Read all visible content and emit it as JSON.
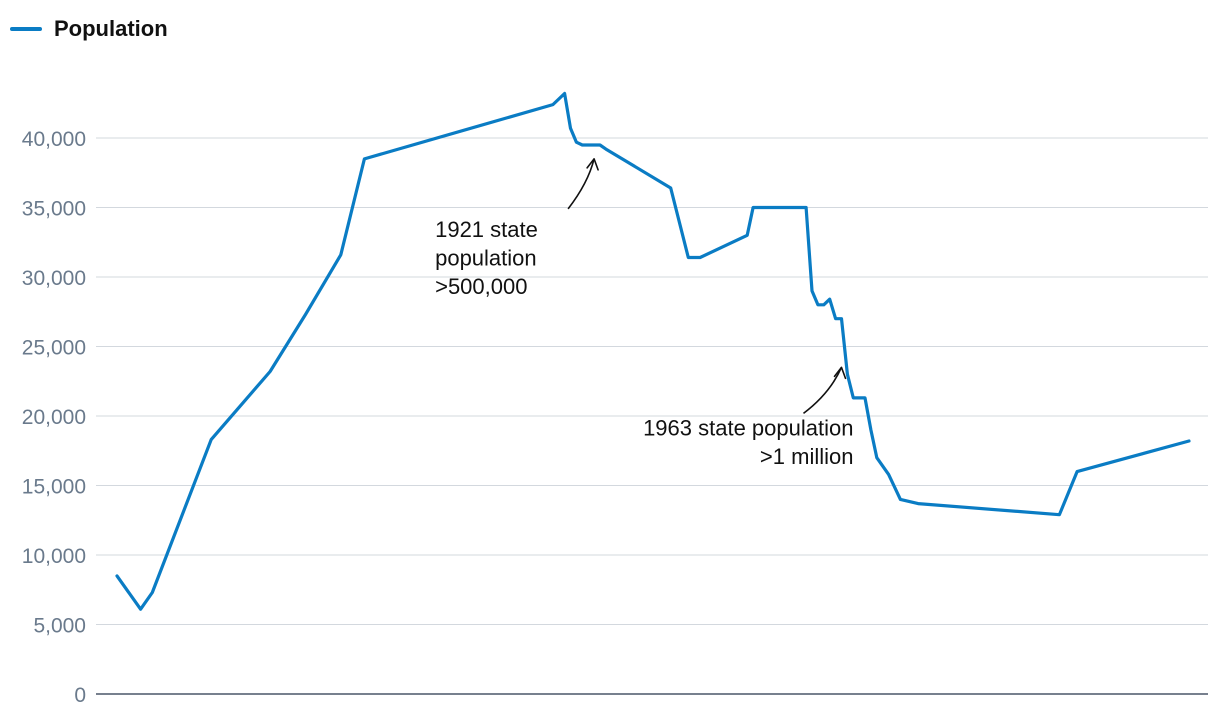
{
  "legend": {
    "label": "Population",
    "color": "#0a7cc4"
  },
  "chart_data": {
    "type": "line",
    "title": "",
    "xlabel": "",
    "ylabel": "",
    "ylim": [
      0,
      45000
    ],
    "y_ticks": [
      0,
      5000,
      10000,
      15000,
      20000,
      25000,
      30000,
      35000,
      40000
    ],
    "y_tick_labels": [
      "0",
      "5,000",
      "10,000",
      "15,000",
      "20,000",
      "25,000",
      "30,000",
      "35,000",
      "40,000"
    ],
    "grid": true,
    "legend_position": "top-left",
    "series": [
      {
        "name": "Population",
        "color": "#0a7cc4",
        "points": [
          [
            0,
            8500
          ],
          [
            2,
            6100
          ],
          [
            3,
            7300
          ],
          [
            8,
            18300
          ],
          [
            13,
            23200
          ],
          [
            16,
            27300
          ],
          [
            19,
            31600
          ],
          [
            21,
            38500
          ],
          [
            37,
            42400
          ],
          [
            38,
            43200
          ],
          [
            38.5,
            40700
          ],
          [
            39,
            39700
          ],
          [
            39.5,
            39500
          ],
          [
            41,
            39500
          ],
          [
            41.5,
            39200
          ],
          [
            47,
            36400
          ],
          [
            48.5,
            31400
          ],
          [
            49.5,
            31400
          ],
          [
            53.5,
            33000
          ],
          [
            54,
            35000
          ],
          [
            56,
            35000
          ],
          [
            58.5,
            35000
          ],
          [
            59,
            29000
          ],
          [
            59.5,
            28000
          ],
          [
            60,
            28000
          ],
          [
            60.5,
            28400
          ],
          [
            61,
            27000
          ],
          [
            61.5,
            27000
          ],
          [
            62,
            23000
          ],
          [
            62.5,
            21300
          ],
          [
            63.5,
            21300
          ],
          [
            64,
            19000
          ],
          [
            64.5,
            17000
          ],
          [
            65.5,
            15800
          ],
          [
            66.5,
            14000
          ],
          [
            68,
            13700
          ],
          [
            80,
            12900
          ],
          [
            81.5,
            16000
          ],
          [
            91,
            18200
          ]
        ]
      }
    ],
    "annotations": [
      {
        "lines": [
          "1921 state",
          "population",
          ">500,000"
        ],
        "point_x": 40.5,
        "point_y": 38500,
        "align": "left"
      },
      {
        "lines": [
          "1963 state population",
          ">1 million"
        ],
        "point_x": 61.5,
        "point_y": 23500,
        "align": "right"
      }
    ]
  }
}
